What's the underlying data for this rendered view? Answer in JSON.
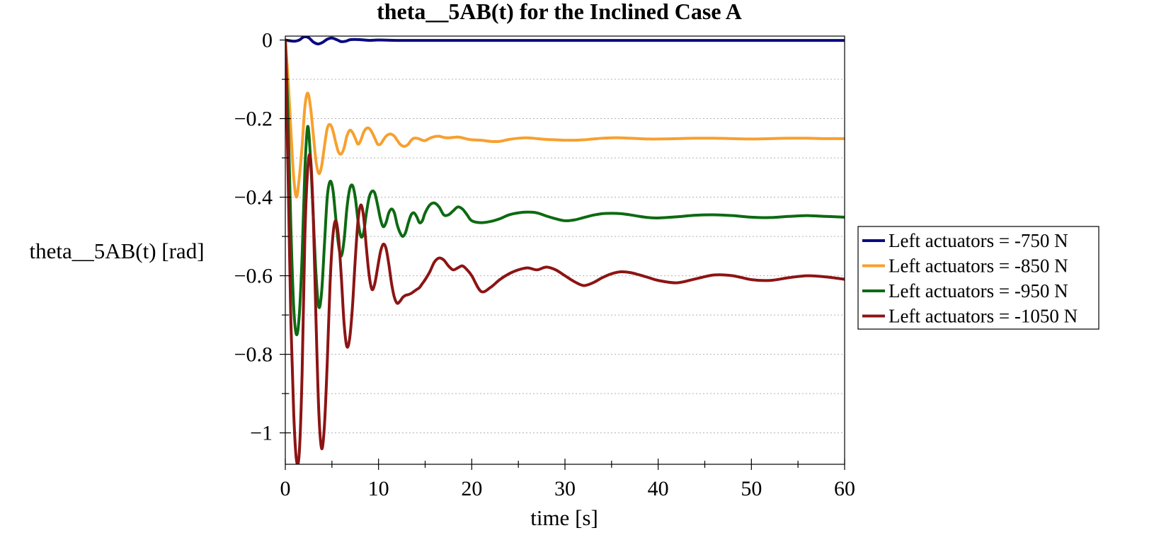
{
  "chart_data": {
    "type": "line",
    "title": "theta__5AB(t) for the Inclined Case A",
    "xlabel": "time [s]",
    "ylabel": "theta__5AB(t) [rad]",
    "xlim": [
      0,
      60
    ],
    "ylim": [
      -1.08,
      0.01
    ],
    "xticks": [
      0,
      10,
      20,
      30,
      40,
      50,
      60
    ],
    "xtick_labels": [
      "0",
      "10",
      "20",
      "30",
      "40",
      "50",
      "60"
    ],
    "yticks": [
      0,
      -0.2,
      -0.4,
      -0.6,
      -0.8,
      -1
    ],
    "ytick_labels": [
      "0",
      "−0.2",
      "−0.4",
      "−0.6",
      "−0.8",
      "−1"
    ],
    "grid": true,
    "legend_position": "right",
    "series": [
      {
        "name": "Left actuators = -750 N",
        "color": "#0a0a82",
        "x": [
          0,
          0.5,
          1,
          1.5,
          2,
          2.5,
          3,
          3.5,
          4,
          4.5,
          5,
          5.5,
          6,
          6.5,
          7,
          8,
          9,
          10,
          12,
          15,
          20,
          30,
          40,
          50,
          60
        ],
        "y": [
          0,
          -0.002,
          -0.003,
          0,
          0.008,
          0.006,
          -0.005,
          -0.01,
          -0.006,
          0.002,
          0.005,
          0.001,
          -0.004,
          -0.003,
          0.001,
          0.001,
          -0.001,
          0,
          -0.001,
          -0.001,
          -0.001,
          -0.001,
          -0.001,
          -0.001,
          -0.001
        ]
      },
      {
        "name": "Left actuators = -850 N",
        "color": "#f7a02e",
        "x": [
          0,
          0.3,
          0.6,
          0.9,
          1.2,
          1.5,
          1.8,
          2.1,
          2.4,
          2.7,
          3.0,
          3.3,
          3.6,
          3.9,
          4.2,
          4.5,
          4.8,
          5.1,
          5.4,
          5.7,
          6.0,
          6.3,
          6.6,
          6.9,
          7.2,
          7.5,
          7.8,
          8.1,
          8.4,
          8.7,
          9.0,
          9.3,
          9.6,
          9.9,
          10.2,
          10.5,
          10.8,
          11.1,
          11.4,
          11.7,
          12.0,
          12.3,
          12.6,
          12.9,
          13.2,
          13.5,
          13.8,
          14.1,
          14.4,
          14.7,
          15.0,
          15.5,
          16.0,
          16.5,
          17.0,
          17.5,
          18.0,
          18.5,
          19.0,
          19.5,
          20,
          21,
          22,
          23,
          24,
          25,
          26,
          27,
          28,
          29,
          30,
          31,
          32,
          33,
          34,
          35,
          36,
          37,
          38,
          39,
          40,
          42,
          44,
          46,
          48,
          50,
          52,
          54,
          56,
          58,
          60
        ],
        "y": [
          0,
          -0.1,
          -0.23,
          -0.35,
          -0.4,
          -0.35,
          -0.27,
          -0.17,
          -0.135,
          -0.17,
          -0.24,
          -0.31,
          -0.34,
          -0.32,
          -0.27,
          -0.225,
          -0.215,
          -0.23,
          -0.26,
          -0.285,
          -0.29,
          -0.275,
          -0.245,
          -0.23,
          -0.235,
          -0.25,
          -0.265,
          -0.255,
          -0.235,
          -0.225,
          -0.225,
          -0.235,
          -0.25,
          -0.265,
          -0.265,
          -0.255,
          -0.245,
          -0.24,
          -0.24,
          -0.245,
          -0.255,
          -0.265,
          -0.27,
          -0.27,
          -0.265,
          -0.255,
          -0.25,
          -0.25,
          -0.252,
          -0.255,
          -0.256,
          -0.25,
          -0.246,
          -0.245,
          -0.248,
          -0.249,
          -0.248,
          -0.247,
          -0.249,
          -0.252,
          -0.254,
          -0.255,
          -0.258,
          -0.258,
          -0.253,
          -0.25,
          -0.249,
          -0.251,
          -0.253,
          -0.254,
          -0.255,
          -0.255,
          -0.254,
          -0.252,
          -0.25,
          -0.249,
          -0.249,
          -0.25,
          -0.251,
          -0.252,
          -0.252,
          -0.251,
          -0.25,
          -0.25,
          -0.251,
          -0.252,
          -0.251,
          -0.25,
          -0.25,
          -0.251,
          -0.251
        ]
      },
      {
        "name": "Left actuators = -950 N",
        "color": "#0d6a12",
        "x": [
          0,
          0.3,
          0.6,
          0.9,
          1.2,
          1.5,
          1.8,
          2.1,
          2.4,
          2.7,
          3.0,
          3.3,
          3.6,
          3.9,
          4.2,
          4.5,
          4.8,
          5.1,
          5.4,
          5.7,
          6.0,
          6.3,
          6.6,
          6.9,
          7.2,
          7.5,
          7.8,
          8.1,
          8.4,
          8.7,
          9.0,
          9.3,
          9.6,
          9.9,
          10.2,
          10.5,
          10.8,
          11.1,
          11.4,
          11.7,
          12.0,
          12.3,
          12.6,
          12.9,
          13.2,
          13.5,
          13.8,
          14.1,
          14.4,
          14.7,
          15.0,
          15.5,
          16.0,
          16.5,
          17.0,
          17.5,
          18.0,
          18.5,
          19.0,
          19.5,
          20,
          21,
          22,
          23,
          24,
          25,
          26,
          27,
          28,
          29,
          30,
          31,
          32,
          33,
          34,
          35,
          36,
          37,
          38,
          39,
          40,
          42,
          44,
          46,
          48,
          50,
          52,
          54,
          56,
          58,
          60
        ],
        "y": [
          0,
          -0.2,
          -0.48,
          -0.68,
          -0.75,
          -0.7,
          -0.55,
          -0.33,
          -0.22,
          -0.3,
          -0.45,
          -0.6,
          -0.68,
          -0.64,
          -0.52,
          -0.4,
          -0.36,
          -0.38,
          -0.45,
          -0.52,
          -0.55,
          -0.51,
          -0.43,
          -0.38,
          -0.37,
          -0.4,
          -0.46,
          -0.5,
          -0.49,
          -0.44,
          -0.4,
          -0.385,
          -0.39,
          -0.42,
          -0.455,
          -0.475,
          -0.465,
          -0.44,
          -0.43,
          -0.44,
          -0.47,
          -0.49,
          -0.5,
          -0.49,
          -0.465,
          -0.445,
          -0.44,
          -0.45,
          -0.465,
          -0.46,
          -0.44,
          -0.42,
          -0.415,
          -0.425,
          -0.445,
          -0.445,
          -0.435,
          -0.425,
          -0.43,
          -0.445,
          -0.46,
          -0.465,
          -0.462,
          -0.455,
          -0.445,
          -0.44,
          -0.438,
          -0.44,
          -0.448,
          -0.455,
          -0.46,
          -0.458,
          -0.452,
          -0.446,
          -0.442,
          -0.441,
          -0.442,
          -0.445,
          -0.449,
          -0.452,
          -0.453,
          -0.45,
          -0.446,
          -0.445,
          -0.447,
          -0.451,
          -0.452,
          -0.449,
          -0.447,
          -0.449,
          -0.451
        ]
      },
      {
        "name": "Left actuators = -1050 N",
        "color": "#8c1414",
        "x": [
          0,
          0.3,
          0.6,
          0.9,
          1.2,
          1.5,
          1.8,
          2.1,
          2.4,
          2.7,
          3.0,
          3.3,
          3.6,
          3.9,
          4.2,
          4.5,
          4.8,
          5.1,
          5.4,
          5.7,
          6.0,
          6.3,
          6.6,
          6.9,
          7.2,
          7.5,
          7.8,
          8.1,
          8.4,
          8.7,
          9.0,
          9.3,
          9.6,
          9.9,
          10.2,
          10.5,
          10.8,
          11.1,
          11.4,
          11.7,
          12.0,
          12.3,
          12.6,
          12.9,
          13.2,
          13.5,
          13.8,
          14.1,
          14.4,
          14.7,
          15.0,
          15.5,
          16.0,
          16.5,
          17.0,
          17.5,
          18.0,
          18.5,
          19.0,
          19.5,
          20,
          21,
          22,
          23,
          24,
          25,
          26,
          27,
          28,
          29,
          30,
          31,
          32,
          33,
          34,
          35,
          36,
          37,
          38,
          39,
          40,
          42,
          44,
          46,
          48,
          50,
          52,
          54,
          56,
          58,
          60
        ],
        "y": [
          0,
          -0.35,
          -0.72,
          -0.95,
          -1.07,
          -1.05,
          -0.85,
          -0.5,
          -0.33,
          -0.3,
          -0.45,
          -0.72,
          -0.95,
          -1.04,
          -0.98,
          -0.82,
          -0.62,
          -0.5,
          -0.46,
          -0.5,
          -0.6,
          -0.72,
          -0.78,
          -0.76,
          -0.68,
          -0.56,
          -0.46,
          -0.42,
          -0.45,
          -0.53,
          -0.6,
          -0.635,
          -0.62,
          -0.58,
          -0.54,
          -0.52,
          -0.53,
          -0.57,
          -0.62,
          -0.655,
          -0.67,
          -0.665,
          -0.655,
          -0.65,
          -0.648,
          -0.645,
          -0.64,
          -0.635,
          -0.63,
          -0.62,
          -0.61,
          -0.59,
          -0.565,
          -0.555,
          -0.56,
          -0.575,
          -0.585,
          -0.58,
          -0.575,
          -0.585,
          -0.6,
          -0.64,
          -0.63,
          -0.61,
          -0.595,
          -0.585,
          -0.58,
          -0.585,
          -0.578,
          -0.585,
          -0.6,
          -0.615,
          -0.625,
          -0.618,
          -0.605,
          -0.595,
          -0.59,
          -0.592,
          -0.598,
          -0.605,
          -0.612,
          -0.618,
          -0.608,
          -0.598,
          -0.6,
          -0.61,
          -0.612,
          -0.605,
          -0.6,
          -0.603,
          -0.609
        ]
      }
    ]
  }
}
